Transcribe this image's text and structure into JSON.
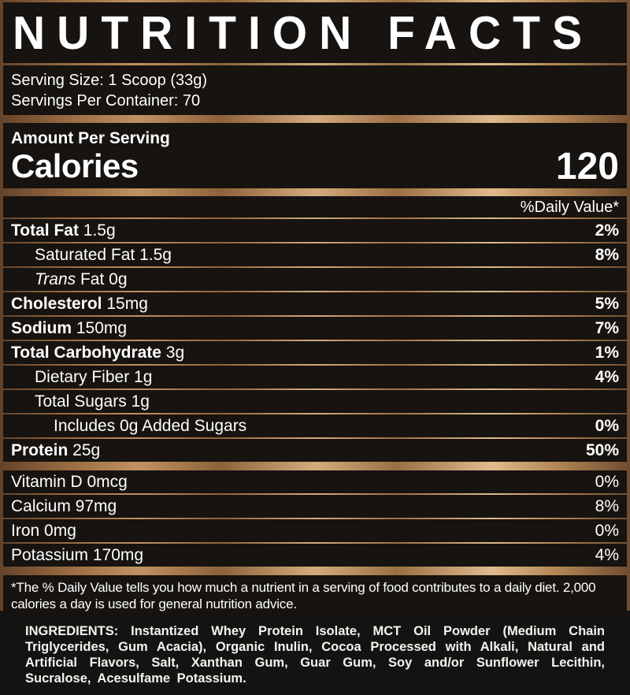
{
  "colors": {
    "bronze_light": "#e0ba8e",
    "bronze_mid": "#b58757",
    "bronze_dark": "#63432a",
    "panel_black": "#161310",
    "text": "#ffffff"
  },
  "title": "NUTRITION FACTS",
  "serving": {
    "size": "Serving Size: 1 Scoop (33g)",
    "per_container": "Servings Per Container: 70"
  },
  "calories": {
    "heading": "Amount Per Serving",
    "label": "Calories",
    "value": "120"
  },
  "daily_value_header": "%Daily Value*",
  "nutrients": [
    {
      "label": "Total Fat",
      "amount": "1.5g",
      "dv": "2%",
      "style": "bold",
      "indent": 0
    },
    {
      "label": "Saturated Fat",
      "amount": "1.5g",
      "dv": "8%",
      "style": "plain",
      "indent": 1
    },
    {
      "label": "Trans",
      "amount": "Fat 0g",
      "dv": "",
      "style": "italic",
      "indent": 1
    },
    {
      "label": "Cholesterol",
      "amount": "15mg",
      "dv": "5%",
      "style": "bold",
      "indent": 0
    },
    {
      "label": "Sodium",
      "amount": "150mg",
      "dv": "7%",
      "style": "bold",
      "indent": 0
    },
    {
      "label": "Total Carbohydrate",
      "amount": "3g",
      "dv": "1%",
      "style": "bold",
      "indent": 0
    },
    {
      "label": "Dietary Fiber",
      "amount": "1g",
      "dv": "4%",
      "style": "plain",
      "indent": 1
    },
    {
      "label": "Total Sugars",
      "amount": "1g",
      "dv": "",
      "style": "plain",
      "indent": 1
    },
    {
      "label": "Includes 0g Added Sugars",
      "amount": "",
      "dv": "0%",
      "style": "plain",
      "indent": 2
    },
    {
      "label": "Protein",
      "amount": "25g",
      "dv": "50%",
      "style": "bold",
      "indent": 0
    }
  ],
  "vitamins": [
    {
      "label": "Vitamin D 0mcg",
      "dv": "0%"
    },
    {
      "label": "Calcium 97mg",
      "dv": "8%"
    },
    {
      "label": "Iron 0mg",
      "dv": "0%"
    },
    {
      "label": "Potassium 170mg",
      "dv": "4%"
    }
  ],
  "footnote": "*The % Daily Value tells you how much a nutrient in a serving of food contributes to a daily diet. 2,000 calories a day is used for general nutrition advice.",
  "ingredients": {
    "label": "INGREDIENTS:",
    "text": " Instantized Whey Protein Isolate, MCT Oil Powder (Medium Chain Triglycerides, Gum Acacia), Organic Inulin, Cocoa Processed with Alkali, Natural and Artificial Flavors, Salt, Xanthan Gum, Guar Gum, Soy and/or Sunflower Lecithin, Sucralose, Acesulfame Potassium."
  }
}
